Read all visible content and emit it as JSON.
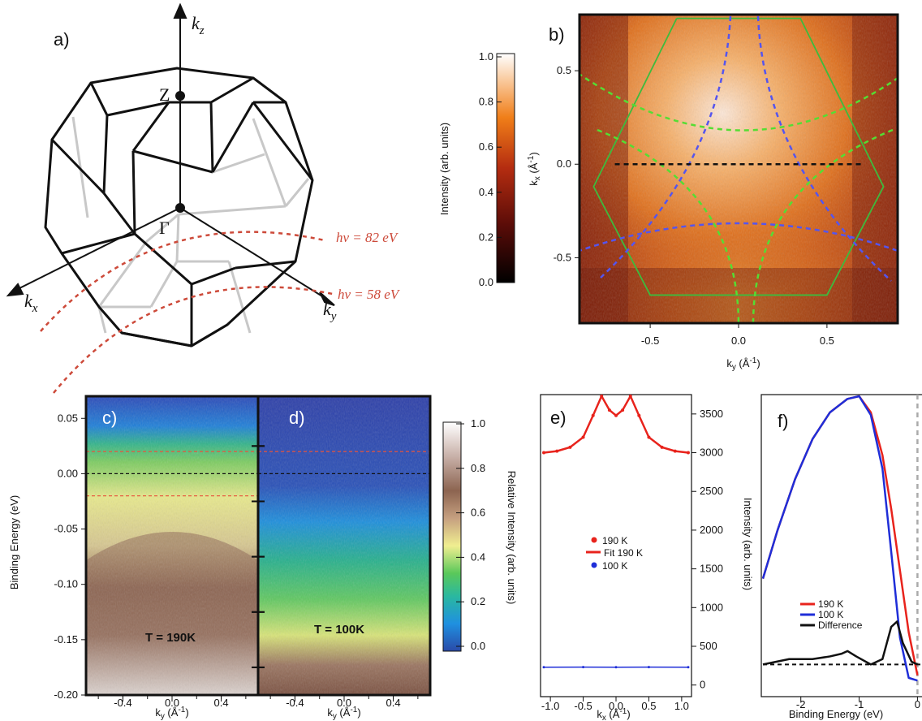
{
  "panel_labels": [
    "a)",
    "b)",
    "c)",
    "d)",
    "e)",
    "f)"
  ],
  "panel_a": {
    "points": {
      "Z": "Z",
      "Gamma": "Γ"
    },
    "axes": {
      "kz": {
        "main": "k",
        "sub": "z"
      },
      "kx": {
        "main": "k",
        "sub": "x"
      },
      "ky": {
        "main": "k",
        "sub": "y"
      }
    },
    "cut_labels": [
      "hν = 82 eV",
      "hν = 58 eV"
    ],
    "colors": {
      "edge": "#111111",
      "hidden_edge": "#c8c8c8",
      "cut": "#cd4a3a"
    }
  },
  "colorbar_b": {
    "label": "Intensity (arb. units)",
    "ticks": [
      "1.0",
      "0.8",
      "0.6",
      "0.4",
      "0.2",
      "0.0"
    ]
  },
  "colorbar_cd": {
    "label": "Relative Intensity (arb. units)",
    "ticks": [
      "1.0",
      "0.8",
      "0.6",
      "0.4",
      "0.2",
      "0.0"
    ]
  },
  "chart_data": [
    {
      "panel": "b",
      "type": "heatmap",
      "xlabel": "k_y (Å^-1)",
      "ylabel": "k_x (Å^-1)",
      "xlim": [
        -0.9,
        0.9
      ],
      "ylim": [
        -0.85,
        0.8
      ],
      "xticks": [
        "-0.5",
        "0.0",
        "0.5"
      ],
      "yticks": [
        "0.5",
        "0.0",
        "-0.5"
      ],
      "overlays": {
        "hexagon_color": "#3dbb3d",
        "hexagon_kx": [
          0.78,
          0.78,
          -0.12,
          -0.7,
          -0.7,
          -0.12,
          0.78
        ],
        "hexagon_ky": [
          -0.35,
          0.35,
          0.82,
          0.5,
          -0.5,
          -0.82,
          -0.35
        ],
        "cut_line_kx": 0.0,
        "cut_line_ky": [
          -0.7,
          0.7
        ],
        "blue_contours": "#5555ee",
        "green_contours": "#55dd33"
      }
    },
    {
      "panel": "c",
      "type": "heatmap",
      "annotation": "T = 190K",
      "xlabel": "k_y (Å^-1)",
      "ylabel": "Binding Energy (eV)",
      "xlim": [
        -0.7,
        0.7
      ],
      "ylim": [
        -0.2,
        0.07
      ],
      "xticks": [
        "-0.4",
        "0.0",
        "0.4"
      ],
      "yticks": [
        "0.05",
        "0.00",
        "-0.05",
        "-0.10",
        "-0.15",
        "-0.20"
      ],
      "hlines": [
        0.02,
        0.0,
        -0.02
      ]
    },
    {
      "panel": "d",
      "type": "heatmap",
      "annotation": "T = 100K",
      "xlabel": "k_y (Å^-1)",
      "xlim": [
        -0.7,
        0.7
      ],
      "ylim": [
        -0.2,
        0.07
      ],
      "xticks": [
        "-0.4",
        "0.0",
        "0.4"
      ],
      "hlines": [
        0.02,
        0.0
      ]
    },
    {
      "panel": "e",
      "type": "scatter",
      "xlabel": "k_x (Å^-1)",
      "ylabel": "Intensity (arb. units)",
      "xlim": [
        -1.15,
        1.15
      ],
      "ylim": [
        -150,
        3750
      ],
      "xticks": [
        "-1.0",
        "-0.5",
        "0.0",
        "0.5",
        "1.0"
      ],
      "yticks": [
        "3500",
        "3000",
        "2500",
        "2000",
        "1500",
        "1000",
        "500",
        "0"
      ],
      "legend_position": "center",
      "series": [
        {
          "name": "190 K",
          "style": "points",
          "color": "#e8231c",
          "x": [
            -1.1,
            -0.9,
            -0.7,
            -0.5,
            -0.35,
            -0.22,
            -0.1,
            0.0,
            0.1,
            0.22,
            0.35,
            0.5,
            0.7,
            0.9,
            1.1
          ],
          "y": [
            3000,
            3020,
            3070,
            3200,
            3480,
            3730,
            3550,
            3480,
            3550,
            3730,
            3480,
            3200,
            3070,
            3020,
            3000
          ]
        },
        {
          "name": "Fit 190 K",
          "style": "line",
          "color": "#e8231c",
          "x": [
            -1.1,
            -0.9,
            -0.7,
            -0.5,
            -0.35,
            -0.22,
            -0.1,
            0.0,
            0.1,
            0.22,
            0.35,
            0.5,
            0.7,
            0.9,
            1.1
          ],
          "y": [
            3000,
            3020,
            3070,
            3200,
            3480,
            3730,
            3550,
            3480,
            3550,
            3730,
            3480,
            3200,
            3070,
            3020,
            3000
          ]
        },
        {
          "name": "100 K",
          "style": "points",
          "color": "#1f2ed8",
          "x": [
            -1.1,
            -0.5,
            0.0,
            0.5,
            1.1
          ],
          "y": [
            230,
            232,
            230,
            231,
            230
          ]
        }
      ]
    },
    {
      "panel": "f",
      "type": "line",
      "xlabel": "Binding Energy (eV)",
      "xlim": [
        -2.65,
        0.05
      ],
      "ylim": [
        -0.12,
        1.0
      ],
      "xticks": [
        "-2",
        "-1",
        "0"
      ],
      "legend_position": "lower-left",
      "series": [
        {
          "name": "190 K",
          "color": "#e8231c",
          "x": [
            -2.65,
            -2.4,
            -2.1,
            -1.8,
            -1.5,
            -1.2,
            -1.0,
            -0.8,
            -0.6,
            -0.45,
            -0.3,
            -0.15,
            0.0
          ],
          "y": [
            0.32,
            0.5,
            0.69,
            0.84,
            0.94,
            0.99,
            1.0,
            0.94,
            0.78,
            0.58,
            0.35,
            0.12,
            -0.04
          ]
        },
        {
          "name": "100 K",
          "color": "#1f2ed8",
          "x": [
            -2.65,
            -2.4,
            -2.1,
            -1.8,
            -1.5,
            -1.2,
            -1.0,
            -0.8,
            -0.6,
            -0.45,
            -0.3,
            -0.15,
            0.0
          ],
          "y": [
            0.32,
            0.5,
            0.69,
            0.84,
            0.94,
            0.99,
            1.0,
            0.93,
            0.73,
            0.42,
            0.1,
            -0.05,
            -0.06
          ]
        },
        {
          "name": "Difference",
          "color": "#111111",
          "x": [
            -2.65,
            -2.2,
            -1.8,
            -1.5,
            -1.3,
            -1.2,
            -1.05,
            -0.8,
            -0.6,
            -0.45,
            -0.35,
            -0.25,
            -0.1,
            0.0
          ],
          "y": [
            0.0,
            0.02,
            0.02,
            0.03,
            0.04,
            0.05,
            0.03,
            0.0,
            0.02,
            0.14,
            0.16,
            0.08,
            0.01,
            0.0
          ]
        }
      ],
      "hlines": [
        0.0
      ],
      "vlines": [
        0.0
      ]
    }
  ]
}
